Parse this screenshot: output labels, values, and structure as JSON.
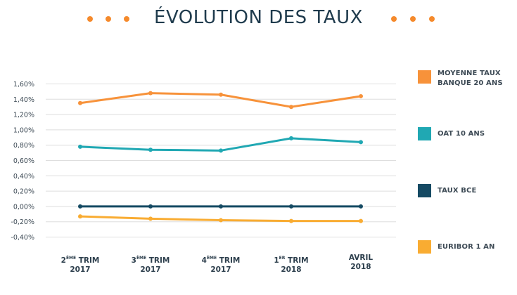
{
  "chart_data": {
    "type": "line",
    "title": "ÉVOLUTION DES TAUX",
    "xlabel": "",
    "ylabel": "",
    "ylim": [
      -0.4,
      1.6
    ],
    "y_ticks": [
      1.6,
      1.4,
      1.2,
      1.0,
      0.8,
      0.6,
      0.4,
      0.2,
      0.0,
      -0.2,
      -0.4
    ],
    "y_tick_labels": [
      "1,60%",
      "1,40%",
      "1,20%",
      "1,00%",
      "0,80%",
      "0,60%",
      "0,40%",
      "0,20%",
      "0,00%",
      "-0,20%",
      "-0,40%"
    ],
    "grid": true,
    "legend_position": "right",
    "categories": [
      {
        "num": "2",
        "sup": "ÈME",
        "rest": " TRIM",
        "year": "2017"
      },
      {
        "num": "3",
        "sup": "ÈME",
        "rest": " TRIM",
        "year": "2017"
      },
      {
        "num": "4",
        "sup": "ÈME",
        "rest": " TRIM",
        "year": "2017"
      },
      {
        "num": "1",
        "sup": "ER",
        "rest": " TRIM",
        "year": "2018"
      },
      {
        "num": "AVRIL",
        "sup": "",
        "rest": "",
        "year": "2018"
      }
    ],
    "series": [
      {
        "name": "MOYENNE TAUX BANQUE 20 ANS",
        "color": "#f7923a",
        "values": [
          1.35,
          1.48,
          1.46,
          1.3,
          1.44
        ]
      },
      {
        "name": "OAT 10 ANS",
        "color": "#20a8b3",
        "values": [
          0.78,
          0.74,
          0.73,
          0.89,
          0.84
        ]
      },
      {
        "name": "TAUX BCE",
        "color": "#154a63",
        "values": [
          0.0,
          0.0,
          0.0,
          0.0,
          0.0
        ]
      },
      {
        "name": "EURIBOR 1 AN",
        "color": "#f9ac32",
        "values": [
          -0.13,
          -0.16,
          -0.18,
          -0.19,
          -0.19
        ]
      }
    ]
  },
  "decor": {
    "accent": "#f58a2c"
  }
}
